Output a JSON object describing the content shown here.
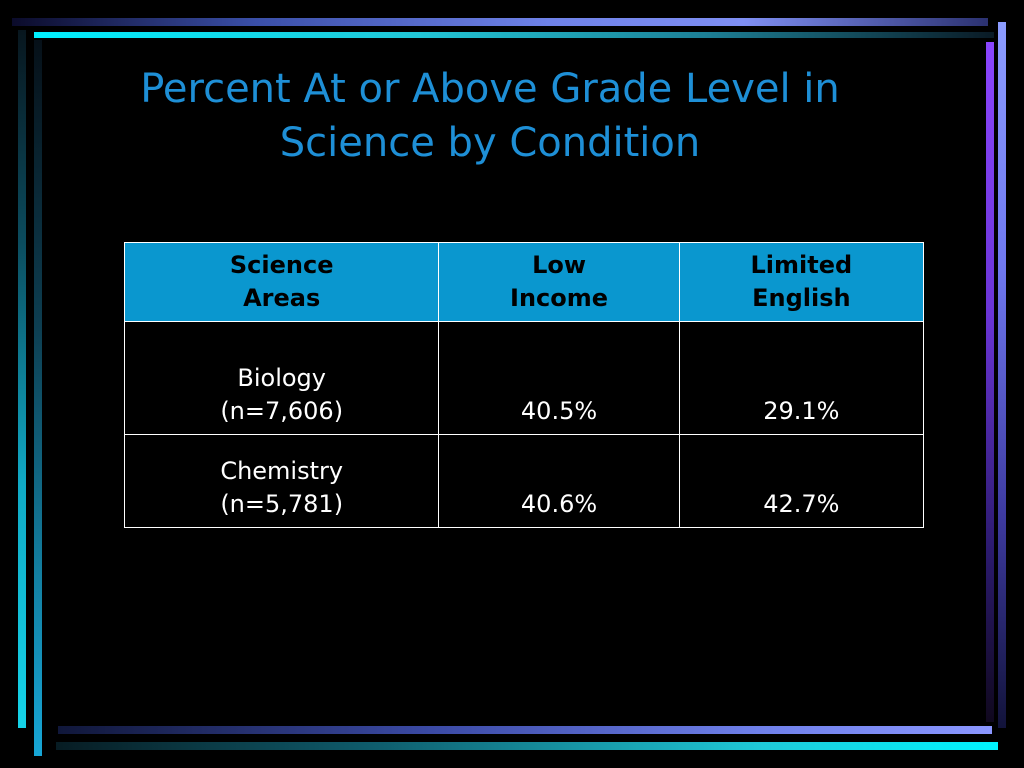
{
  "slide": {
    "title_line1": "Percent At or Above Grade Level in",
    "title_line2": "Science by Condition"
  },
  "table": {
    "headers": [
      {
        "line1": "Science",
        "line2": "Areas"
      },
      {
        "line1": "Low",
        "line2": "Income"
      },
      {
        "line1": "Limited",
        "line2": "English"
      }
    ],
    "rows": [
      {
        "area": "Biology",
        "n": "(n=7,606)",
        "low_income": "40.5%",
        "limited_english": "29.1%"
      },
      {
        "area": "Chemistry",
        "n": "(n=5,781)",
        "low_income": "40.6%",
        "limited_english": "42.7%"
      }
    ]
  },
  "colors": {
    "title": "#1e8fd6",
    "header_bg": "#0a97cf",
    "background": "#000000",
    "cell_text": "#ffffff"
  }
}
